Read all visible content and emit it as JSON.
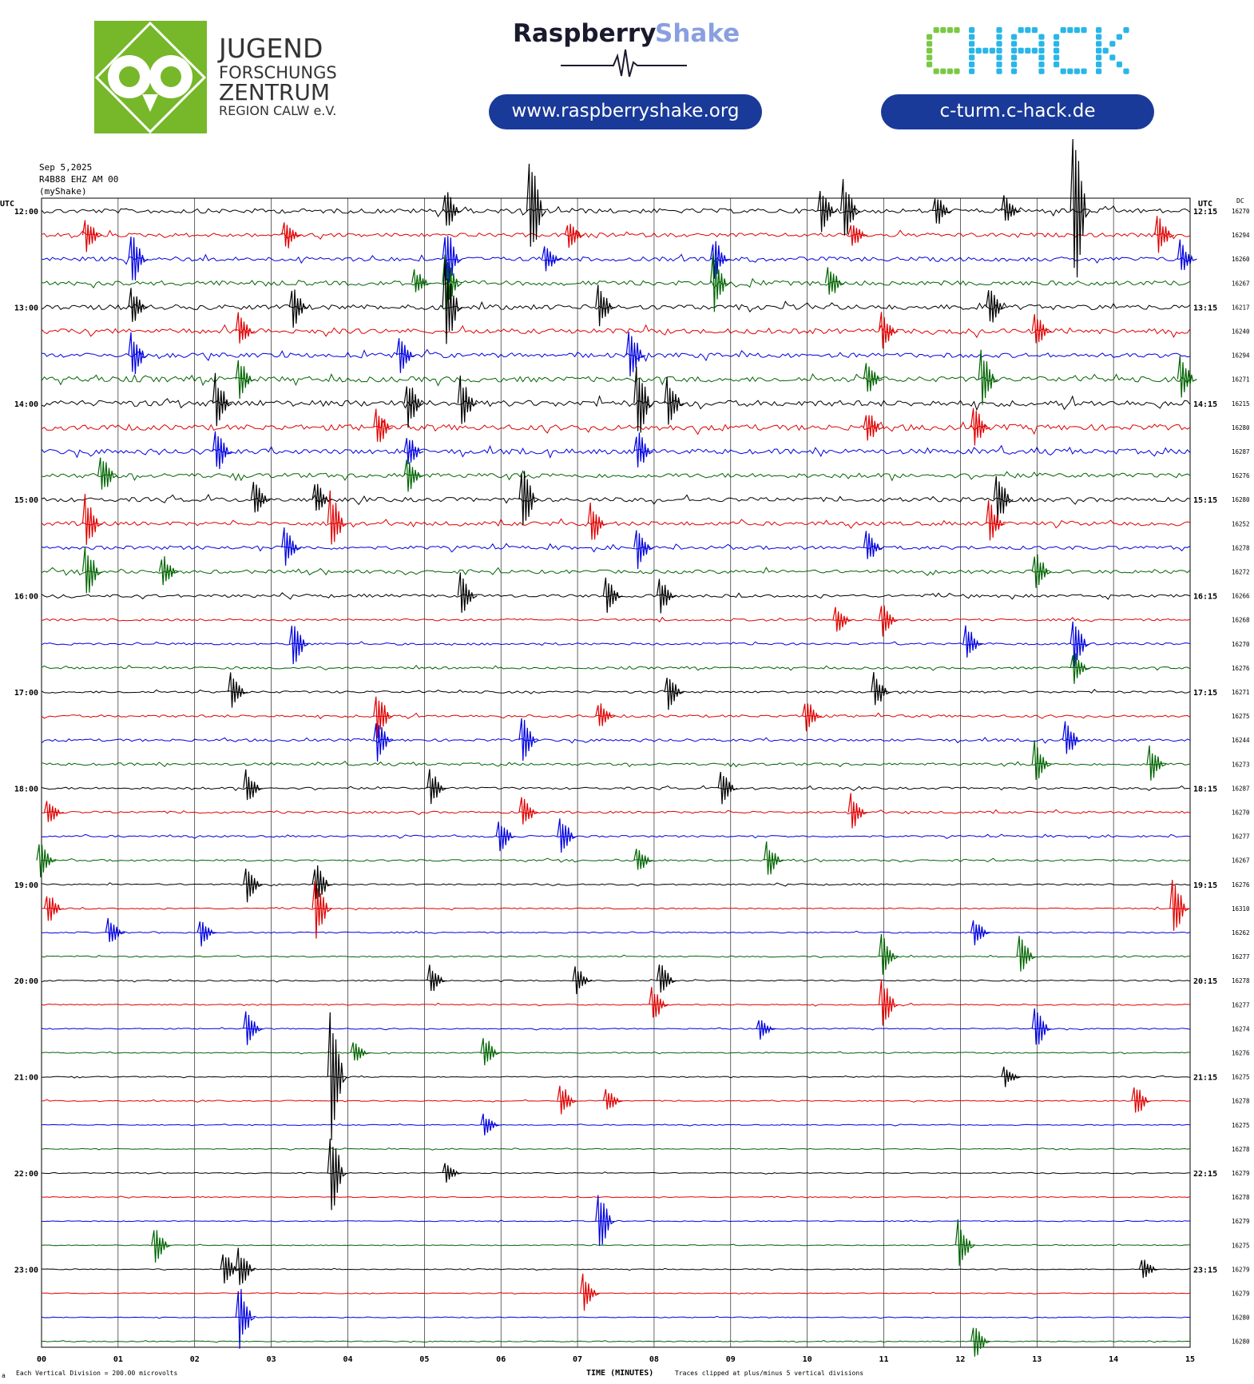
{
  "header": {
    "jfz": {
      "line1": "JUGEND",
      "line2": "FORSCHUNGS",
      "line3": "ZENTRUM",
      "line4": "REGION CALW e.V."
    },
    "raspberry": {
      "word1": "Raspberry",
      "word2": "Shake",
      "url": "www.raspberryshake.org"
    },
    "chack": {
      "logo": "CHACK",
      "url": "c-turm.c-hack.de"
    },
    "colors": {
      "jfz_green": "#76b82a",
      "rs_dark": "#1a1a2e",
      "rs_blue": "#8a9fe0",
      "pill_navy": "#1a3a99",
      "chack_green": "#7ac943",
      "chack_cyan": "#29b6e8"
    }
  },
  "station": {
    "date": "Sep 5,2025",
    "channel": "R4B88 EHZ AM 00",
    "network": "(myShake)"
  },
  "axis": {
    "left_title": "UTC",
    "right_title": "UTC",
    "dc_title": "DC",
    "xlabel": "TIME (MINUTES)",
    "footer_left": "Each Vertical Division =  200.00 microvolts",
    "footer_right": "Traces clipped at plus/minus 5 vertical divisions",
    "footer_mark": "a"
  },
  "chart_data": {
    "type": "line",
    "title": "",
    "xlabel": "TIME (MINUTES)",
    "x_ticks": [
      "00",
      "01",
      "02",
      "03",
      "04",
      "05",
      "06",
      "07",
      "08",
      "09",
      "10",
      "11",
      "12",
      "13",
      "14",
      "15"
    ],
    "xlim": [
      0,
      15
    ],
    "trace_minutes": 15,
    "trace_colors": [
      "#000000",
      "#e00000",
      "#0000e0",
      "#006400"
    ],
    "left_hour_labels": [
      "12:00",
      "13:00",
      "14:00",
      "15:00",
      "16:00",
      "17:00",
      "18:00",
      "19:00",
      "20:00",
      "21:00",
      "22:00",
      "23:00"
    ],
    "right_hour_labels": [
      "12:15",
      "13:15",
      "14:15",
      "15:15",
      "16:15",
      "17:15",
      "18:15",
      "19:15",
      "20:15",
      "21:15",
      "22:15",
      "23:15"
    ],
    "dc_offsets": [
      16270,
      16294,
      16260,
      16267,
      16217,
      16240,
      16294,
      16271,
      16215,
      16280,
      16287,
      16276,
      16280,
      16252,
      16278,
      16272,
      16266,
      16268,
      16270,
      16276,
      16271,
      16275,
      16244,
      16273,
      16287,
      16270,
      16277,
      16267,
      16276,
      16310,
      16262,
      16277,
      16278,
      16277,
      16274,
      16276,
      16275,
      16278,
      16275,
      16278,
      16279,
      16278,
      16279,
      16275,
      16279,
      16279,
      16280,
      16280
    ],
    "activity_level": [
      1.3,
      1.1,
      1.2,
      1.3,
      1.4,
      1.4,
      1.3,
      1.5,
      1.7,
      1.6,
      1.4,
      1.3,
      1.2,
      1.1,
      1.0,
      1.0,
      0.8,
      0.6,
      0.6,
      0.6,
      0.6,
      0.7,
      0.7,
      0.7,
      0.6,
      0.6,
      0.5,
      0.5,
      0.4,
      0.35,
      0.35,
      0.35,
      0.35,
      0.35,
      0.3,
      0.3,
      0.3,
      0.3,
      0.25,
      0.25,
      0.25,
      0.25,
      0.25,
      0.25,
      0.25,
      0.25,
      0.25,
      0.25
    ],
    "events": [
      {
        "row": 0,
        "t": 6.4,
        "amp": 80
      },
      {
        "row": 0,
        "t": 5.3,
        "amp": 30
      },
      {
        "row": 0,
        "t": 10.2,
        "amp": 30
      },
      {
        "row": 0,
        "t": 13.5,
        "amp": 120
      },
      {
        "row": 0,
        "t": 10.5,
        "amp": 45
      },
      {
        "row": 0,
        "t": 11.7,
        "amp": 25
      },
      {
        "row": 0,
        "t": 12.6,
        "amp": 20
      },
      {
        "row": 1,
        "t": 0.6,
        "amp": 25
      },
      {
        "row": 1,
        "t": 3.2,
        "amp": 25
      },
      {
        "row": 1,
        "t": 10.6,
        "amp": 20
      },
      {
        "row": 1,
        "t": 14.6,
        "amp": 30
      },
      {
        "row": 1,
        "t": 6.9,
        "amp": 20
      },
      {
        "row": 2,
        "t": 1.2,
        "amp": 40
      },
      {
        "row": 2,
        "t": 5.3,
        "amp": 45
      },
      {
        "row": 2,
        "t": 8.8,
        "amp": 30
      },
      {
        "row": 2,
        "t": 14.9,
        "amp": 25
      },
      {
        "row": 2,
        "t": 6.6,
        "amp": 20
      },
      {
        "row": 3,
        "t": 8.8,
        "amp": 45
      },
      {
        "row": 3,
        "t": 5.3,
        "amp": 40
      },
      {
        "row": 3,
        "t": 4.9,
        "amp": 20
      },
      {
        "row": 3,
        "t": 10.3,
        "amp": 25
      },
      {
        "row": 4,
        "t": 5.3,
        "amp": 60
      },
      {
        "row": 4,
        "t": 3.3,
        "amp": 30
      },
      {
        "row": 4,
        "t": 1.2,
        "amp": 25
      },
      {
        "row": 4,
        "t": 12.4,
        "amp": 30
      },
      {
        "row": 4,
        "t": 7.3,
        "amp": 30
      },
      {
        "row": 5,
        "t": 13.0,
        "amp": 25
      },
      {
        "row": 5,
        "t": 11.0,
        "amp": 25
      },
      {
        "row": 5,
        "t": 2.6,
        "amp": 25
      },
      {
        "row": 6,
        "t": 7.7,
        "amp": 40
      },
      {
        "row": 6,
        "t": 4.7,
        "amp": 25
      },
      {
        "row": 6,
        "t": 1.2,
        "amp": 35
      },
      {
        "row": 7,
        "t": 12.3,
        "amp": 40
      },
      {
        "row": 7,
        "t": 14.9,
        "amp": 30
      },
      {
        "row": 7,
        "t": 2.6,
        "amp": 30
      },
      {
        "row": 7,
        "t": 10.8,
        "amp": 25
      },
      {
        "row": 8,
        "t": 7.8,
        "amp": 55
      },
      {
        "row": 8,
        "t": 2.3,
        "amp": 40
      },
      {
        "row": 8,
        "t": 5.5,
        "amp": 35
      },
      {
        "row": 8,
        "t": 4.8,
        "amp": 35
      },
      {
        "row": 8,
        "t": 8.2,
        "amp": 40
      },
      {
        "row": 9,
        "t": 4.4,
        "amp": 30
      },
      {
        "row": 9,
        "t": 12.2,
        "amp": 30
      },
      {
        "row": 9,
        "t": 10.8,
        "amp": 25
      },
      {
        "row": 10,
        "t": 2.3,
        "amp": 35
      },
      {
        "row": 10,
        "t": 7.8,
        "amp": 30
      },
      {
        "row": 10,
        "t": 4.8,
        "amp": 25
      },
      {
        "row": 11,
        "t": 0.8,
        "amp": 30
      },
      {
        "row": 11,
        "t": 4.8,
        "amp": 25
      },
      {
        "row": 12,
        "t": 6.3,
        "amp": 45
      },
      {
        "row": 12,
        "t": 12.5,
        "amp": 40
      },
      {
        "row": 12,
        "t": 3.6,
        "amp": 25
      },
      {
        "row": 12,
        "t": 2.8,
        "amp": 25
      },
      {
        "row": 13,
        "t": 3.8,
        "amp": 45
      },
      {
        "row": 13,
        "t": 0.6,
        "amp": 40
      },
      {
        "row": 13,
        "t": 7.2,
        "amp": 30
      },
      {
        "row": 13,
        "t": 12.4,
        "amp": 30
      },
      {
        "row": 14,
        "t": 3.2,
        "amp": 30
      },
      {
        "row": 14,
        "t": 7.8,
        "amp": 30
      },
      {
        "row": 14,
        "t": 10.8,
        "amp": 25
      },
      {
        "row": 15,
        "t": 0.6,
        "amp": 40
      },
      {
        "row": 15,
        "t": 1.6,
        "amp": 25
      },
      {
        "row": 15,
        "t": 13.0,
        "amp": 30
      },
      {
        "row": 16,
        "t": 5.5,
        "amp": 30
      },
      {
        "row": 16,
        "t": 7.4,
        "amp": 25
      },
      {
        "row": 16,
        "t": 8.1,
        "amp": 25
      },
      {
        "row": 17,
        "t": 11.0,
        "amp": 25
      },
      {
        "row": 17,
        "t": 10.4,
        "amp": 20
      },
      {
        "row": 18,
        "t": 3.3,
        "amp": 35
      },
      {
        "row": 18,
        "t": 13.5,
        "amp": 35
      },
      {
        "row": 18,
        "t": 12.1,
        "amp": 25
      },
      {
        "row": 19,
        "t": 13.5,
        "amp": 25
      },
      {
        "row": 20,
        "t": 2.5,
        "amp": 25
      },
      {
        "row": 20,
        "t": 8.2,
        "amp": 25
      },
      {
        "row": 20,
        "t": 10.9,
        "amp": 25
      },
      {
        "row": 21,
        "t": 4.4,
        "amp": 35
      },
      {
        "row": 21,
        "t": 10.0,
        "amp": 25
      },
      {
        "row": 21,
        "t": 7.3,
        "amp": 20
      },
      {
        "row": 22,
        "t": 6.3,
        "amp": 35
      },
      {
        "row": 22,
        "t": 4.4,
        "amp": 30
      },
      {
        "row": 22,
        "t": 13.4,
        "amp": 25
      },
      {
        "row": 23,
        "t": 13.0,
        "amp": 30
      },
      {
        "row": 23,
        "t": 14.5,
        "amp": 25
      },
      {
        "row": 24,
        "t": 2.7,
        "amp": 25
      },
      {
        "row": 24,
        "t": 5.1,
        "amp": 25
      },
      {
        "row": 24,
        "t": 8.9,
        "amp": 25
      },
      {
        "row": 25,
        "t": 6.3,
        "amp": 25
      },
      {
        "row": 25,
        "t": 10.6,
        "amp": 25
      },
      {
        "row": 25,
        "t": 0.1,
        "amp": 20
      },
      {
        "row": 26,
        "t": 6.8,
        "amp": 30
      },
      {
        "row": 26,
        "t": 6.0,
        "amp": 25
      },
      {
        "row": 27,
        "t": 9.5,
        "amp": 25
      },
      {
        "row": 27,
        "t": 7.8,
        "amp": 20
      },
      {
        "row": 27,
        "t": 0.0,
        "amp": 25
      },
      {
        "row": 28,
        "t": 2.7,
        "amp": 30
      },
      {
        "row": 28,
        "t": 3.6,
        "amp": 30
      },
      {
        "row": 29,
        "t": 3.6,
        "amp": 45
      },
      {
        "row": 29,
        "t": 0.1,
        "amp": 25
      },
      {
        "row": 29,
        "t": 14.8,
        "amp": 45
      },
      {
        "row": 30,
        "t": 0.9,
        "amp": 20
      },
      {
        "row": 30,
        "t": 2.1,
        "amp": 20
      },
      {
        "row": 30,
        "t": 12.2,
        "amp": 20
      },
      {
        "row": 31,
        "t": 11.0,
        "amp": 30
      },
      {
        "row": 31,
        "t": 12.8,
        "amp": 30
      },
      {
        "row": 32,
        "t": 5.1,
        "amp": 20
      },
      {
        "row": 32,
        "t": 8.1,
        "amp": 25
      },
      {
        "row": 32,
        "t": 7.0,
        "amp": 20
      },
      {
        "row": 33,
        "t": 8.0,
        "amp": 25
      },
      {
        "row": 33,
        "t": 11.0,
        "amp": 40
      },
      {
        "row": 34,
        "t": 2.7,
        "amp": 25
      },
      {
        "row": 34,
        "t": 13.0,
        "amp": 30
      },
      {
        "row": 34,
        "t": 9.4,
        "amp": 15
      },
      {
        "row": 35,
        "t": 5.8,
        "amp": 25
      },
      {
        "row": 35,
        "t": 4.1,
        "amp": 15
      },
      {
        "row": 36,
        "t": 3.8,
        "amp": 90
      },
      {
        "row": 36,
        "t": 12.6,
        "amp": 15
      },
      {
        "row": 37,
        "t": 6.8,
        "amp": 25
      },
      {
        "row": 37,
        "t": 14.3,
        "amp": 25
      },
      {
        "row": 37,
        "t": 7.4,
        "amp": 20
      },
      {
        "row": 38,
        "t": 5.8,
        "amp": 15
      },
      {
        "row": 40,
        "t": 3.8,
        "amp": 60
      },
      {
        "row": 40,
        "t": 5.3,
        "amp": 15
      },
      {
        "row": 42,
        "t": 7.3,
        "amp": 45
      },
      {
        "row": 43,
        "t": 1.5,
        "amp": 25
      },
      {
        "row": 43,
        "t": 12.0,
        "amp": 35
      },
      {
        "row": 44,
        "t": 2.4,
        "amp": 25
      },
      {
        "row": 44,
        "t": 2.6,
        "amp": 30
      },
      {
        "row": 44,
        "t": 14.4,
        "amp": 15
      },
      {
        "row": 45,
        "t": 7.1,
        "amp": 25
      },
      {
        "row": 46,
        "t": 2.6,
        "amp": 45
      },
      {
        "row": 47,
        "t": 12.2,
        "amp": 25
      }
    ]
  }
}
